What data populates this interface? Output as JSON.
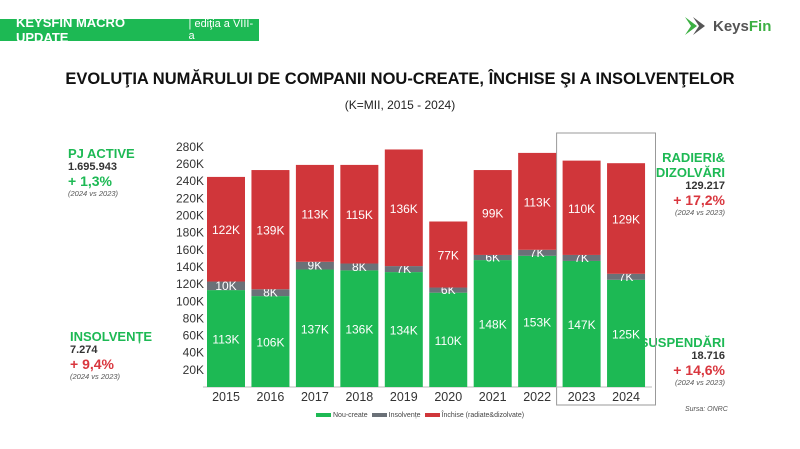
{
  "header": {
    "banner_title": "KEYSFIN MACRO UPDATE",
    "banner_sub": "| ediţia a VIII-a",
    "logo_text_a": "Keys",
    "logo_text_b": "Fin"
  },
  "kpis": {
    "pj_active": {
      "label": "PJ ACTIVE",
      "value": "1.695.943",
      "change": "+ 1,3%",
      "compare": "(2024 vs 2023)"
    },
    "insolvente": {
      "label": "INSOLVENȚE",
      "value": "7.274",
      "change": "+ 9,4%",
      "compare": "(2024 vs 2023)"
    },
    "radieri": {
      "label1": "RADIERI&",
      "label2": "DIZOLVĂRI",
      "value": "129.217",
      "change": "+ 17,2%",
      "compare": "(2024 vs 2023)"
    },
    "suspendari": {
      "label": "SUSPENDĂRI",
      "value": "18.716",
      "change": "+ 14,6%",
      "compare": "(2024 vs 2023)"
    }
  },
  "source": "Sursa: ONRC",
  "colors": {
    "green": "#1db954",
    "gray": "#6b7178",
    "red": "#d0363a"
  },
  "chart_data": {
    "type": "bar",
    "stacked": true,
    "title": "EVOLUŢIA NUMĂRULUI DE COMPANII NOU-CREATE, ÎNCHISE ŞI A INSOLVENŢELOR",
    "subtitle": "(K=MII, 2015 - 2024)",
    "categories": [
      "2015",
      "2016",
      "2017",
      "2018",
      "2019",
      "2020",
      "2021",
      "2022",
      "2023",
      "2024"
    ],
    "series": [
      {
        "name": "Nou-create",
        "values": [
          113,
          106,
          137,
          136,
          134,
          110,
          148,
          153,
          147,
          125
        ]
      },
      {
        "name": "Insolvențe",
        "values": [
          10,
          8,
          9,
          8,
          7,
          6,
          6,
          7,
          7,
          7
        ]
      },
      {
        "name": "Închise (radiate&dizolvate)",
        "values": [
          122,
          139,
          113,
          115,
          136,
          77,
          99,
          113,
          110,
          129
        ]
      }
    ],
    "yticks": [
      "20K",
      "40K",
      "60K",
      "80K",
      "100K",
      "120K",
      "140K",
      "160K",
      "180K",
      "200K",
      "220K",
      "240K",
      "260K",
      "280K"
    ],
    "ylim": [
      0,
      280
    ],
    "legend": "bottom",
    "highlight": [
      "2023",
      "2024"
    ]
  }
}
